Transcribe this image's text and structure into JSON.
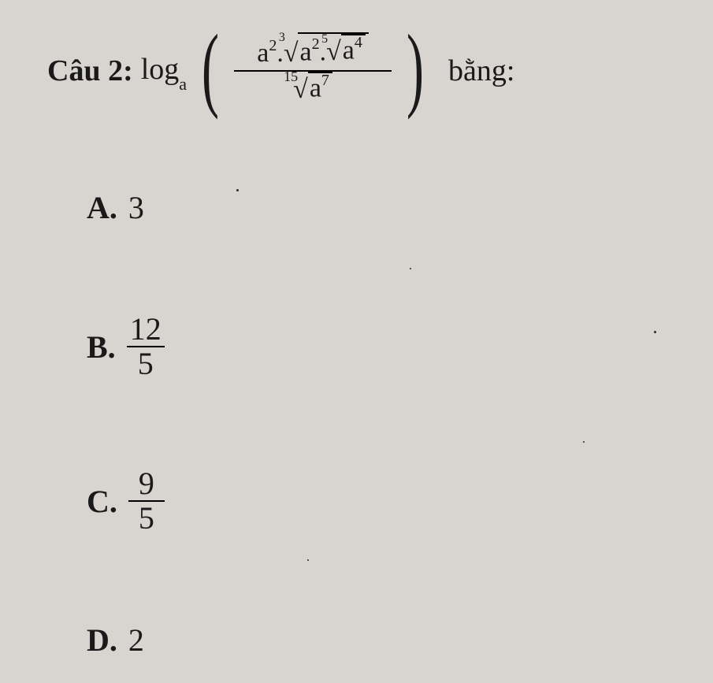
{
  "question": {
    "label": "Câu 2:",
    "log_text": "log",
    "log_base": "a",
    "equals_text": "bằng:",
    "expression": {
      "numerator": {
        "a1_base": "a",
        "a1_exp": "2",
        "dot": ".",
        "root1_index": "3",
        "root1_inner": {
          "a_base": "a",
          "a_exp": "2",
          "dot": ".",
          "root2_index": "5",
          "root2_inner": {
            "a_base": "a",
            "a_exp": "4"
          }
        }
      },
      "denominator": {
        "root_index": "15",
        "a_base": "a",
        "a_exp": "7"
      }
    }
  },
  "options": {
    "A": {
      "label": "A.",
      "type": "integer",
      "value": "3"
    },
    "B": {
      "label": "B.",
      "type": "fraction",
      "num": "12",
      "den": "5"
    },
    "C": {
      "label": "C.",
      "type": "fraction",
      "num": "9",
      "den": "5"
    },
    "D": {
      "label": "D.",
      "type": "integer",
      "value": "2"
    }
  },
  "style": {
    "background_color": "#d8d5d0",
    "text_color": "#1a1a1a",
    "font_family": "Times New Roman",
    "question_fontsize_pt": 28,
    "option_fontsize_pt": 30
  }
}
